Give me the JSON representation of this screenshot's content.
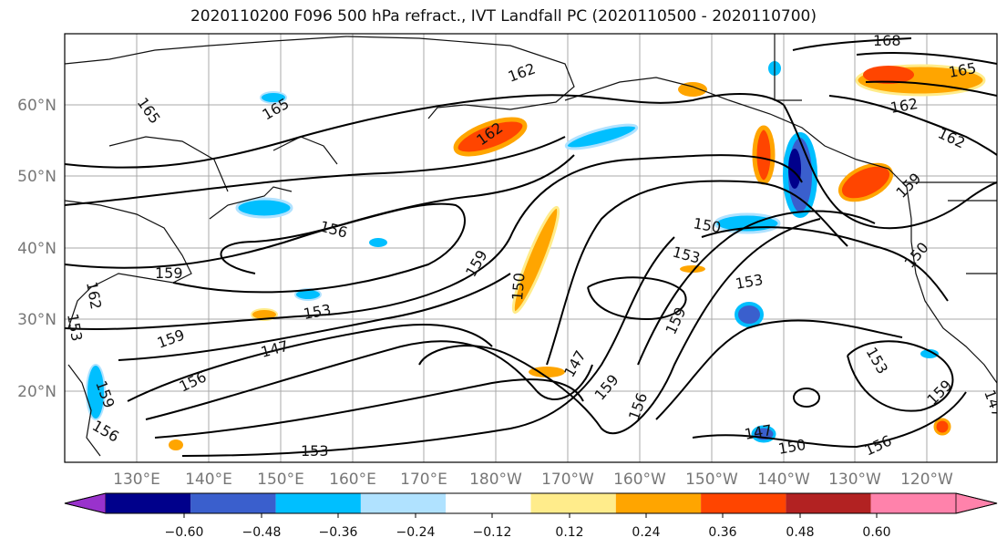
{
  "title": "2020110200 F096 500 hPa refract., IVT Landfall PC (2020110500 - 2020110700)",
  "lat_labels": [
    "60°N",
    "50°N",
    "40°N",
    "30°N",
    "20°N"
  ],
  "lon_labels": [
    "130°E",
    "140°E",
    "150°E",
    "160°E",
    "170°E",
    "180°W",
    "170°W",
    "160°W",
    "150°W",
    "140°W",
    "130°W",
    "120°W"
  ],
  "contour_labels": [
    "165",
    "165",
    "162",
    "156",
    "159",
    "159",
    "150",
    "153",
    "159",
    "147",
    "147",
    "156",
    "159",
    "150",
    "153",
    "153",
    "150",
    "147",
    "150",
    "156",
    "159",
    "153",
    "147",
    "162",
    "159",
    "168",
    "165",
    "162",
    "162",
    "159",
    "156",
    "153",
    "153",
    "156",
    "159",
    "162"
  ],
  "colorbar": {
    "ticks": [
      "−0.60",
      "−0.48",
      "−0.36",
      "−0.24",
      "−0.12",
      "0.12",
      "0.24",
      "0.36",
      "0.48",
      "0.60"
    ],
    "colors": [
      "#9932cc",
      "#00008b",
      "#3a5fcd",
      "#00bfff",
      "#b0e2ff",
      "#ffffff",
      "#ffec8b",
      "#ffa500",
      "#ff4500",
      "#b22222",
      "#ff82ab"
    ]
  }
}
